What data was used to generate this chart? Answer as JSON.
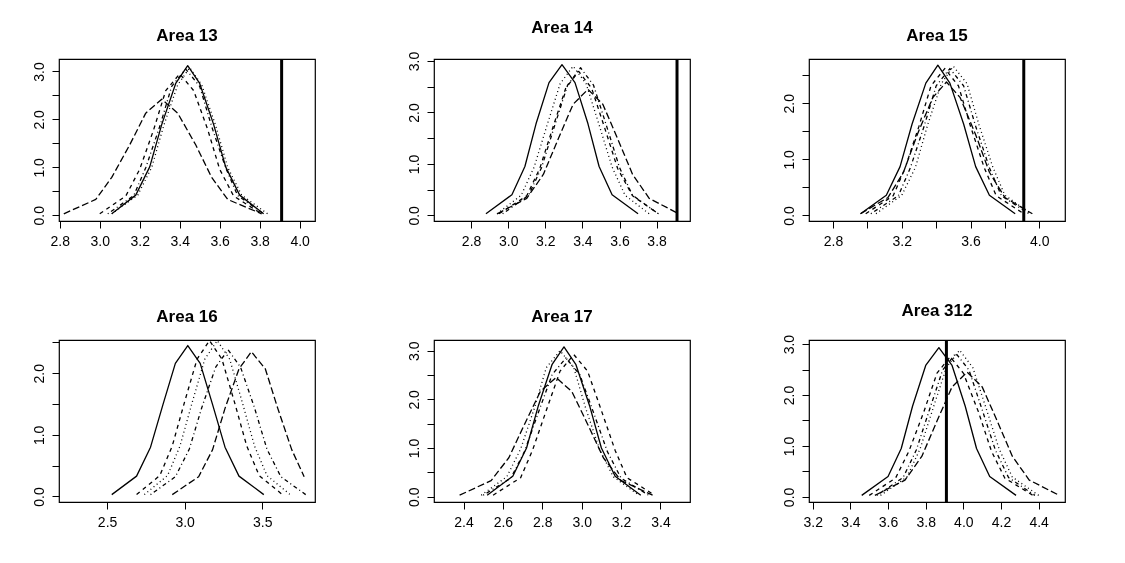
{
  "chart_data": [
    {
      "type": "line",
      "title": "Area 13",
      "xlim": [
        2.796,
        4.077
      ],
      "ylim": [
        -0.12,
        3.26
      ],
      "xticks": [
        2.8,
        {
          "value": 3,
          "label": "3.0"
        },
        3.2,
        3.4,
        3.6,
        3.8,
        {
          "value": 4,
          "label": "4.0"
        }
      ],
      "yticks": [
        {
          "value": 0,
          "label": "0.0"
        },
        {
          "value": 0.5,
          "label": null
        },
        {
          "value": 1,
          "label": "1.0"
        },
        {
          "value": 1.5,
          "label": null
        },
        {
          "value": 2,
          "label": "2.0"
        },
        {
          "value": 2.5,
          "label": null
        },
        {
          "value": 3,
          "label": "3.0"
        }
      ],
      "ref_lines": [
        {
          "axis": "x",
          "value": 3.91,
          "color": "#000000"
        }
      ],
      "series": [
        {
          "color": "#000000",
          "line_style": "solid",
          "x": [
            3.06,
            3.18,
            3.25,
            3.31,
            3.38,
            3.44,
            3.5,
            3.57,
            3.63,
            3.7,
            3.82
          ],
          "values": [
            0.03,
            0.42,
            1.01,
            1.89,
            2.75,
            3.12,
            2.75,
            1.89,
            1.01,
            0.42,
            0.03
          ]
        },
        {
          "color": "#000000",
          "line_style": "dashed",
          "x": [
            3.0,
            3.13,
            3.2,
            3.27,
            3.33,
            3.4,
            3.47,
            3.54,
            3.6,
            3.67,
            3.81
          ],
          "values": [
            0.03,
            0.4,
            0.96,
            1.79,
            2.6,
            2.95,
            2.6,
            1.79,
            0.96,
            0.4,
            0.03
          ]
        },
        {
          "color": "#000000",
          "line_style": "dotted",
          "x": [
            3.06,
            3.19,
            3.26,
            3.32,
            3.39,
            3.45,
            3.51,
            3.58,
            3.64,
            3.71,
            3.84
          ],
          "values": [
            0.03,
            0.42,
            1.0,
            1.87,
            2.72,
            3.08,
            2.72,
            1.87,
            1.0,
            0.42,
            0.03
          ]
        },
        {
          "color": "#000000",
          "line_style": "dotdash",
          "x": [
            3.04,
            3.17,
            3.23,
            3.3,
            3.36,
            3.43,
            3.5,
            3.56,
            3.63,
            3.69,
            3.82
          ],
          "values": [
            0.03,
            0.41,
            0.99,
            1.85,
            2.69,
            3.05,
            2.69,
            1.85,
            0.99,
            0.41,
            0.03
          ]
        },
        {
          "color": "#000000",
          "line_style": "longdash",
          "x": [
            2.82,
            2.98,
            3.06,
            3.15,
            3.23,
            3.31,
            3.39,
            3.48,
            3.56,
            3.64,
            3.81
          ],
          "values": [
            0.03,
            0.33,
            0.79,
            1.47,
            2.13,
            2.42,
            2.13,
            1.47,
            0.79,
            0.33,
            0.03
          ]
        }
      ]
    },
    {
      "type": "line",
      "title": "Area 14",
      "xlim": [
        2.6,
        3.98
      ],
      "ylim": [
        -0.11,
        3.04
      ],
      "xticks": [
        2.8,
        {
          "value": 3,
          "label": "3.0"
        },
        3.2,
        3.4,
        3.6,
        3.8
      ],
      "yticks": [
        {
          "value": 0,
          "label": "0.0"
        },
        {
          "value": 0.5,
          "label": null
        },
        {
          "value": 1,
          "label": "1.0"
        },
        {
          "value": 1.5,
          "label": null
        },
        {
          "value": 2,
          "label": "2.0"
        },
        {
          "value": 2.5,
          "label": null
        },
        {
          "value": 3,
          "label": "3.0"
        }
      ],
      "ref_lines": [
        {
          "axis": "x",
          "value": 3.91,
          "color": "#000000"
        }
      ],
      "series": [
        {
          "color": "#000000",
          "line_style": "solid",
          "x": [
            2.88,
            3.02,
            3.09,
            3.15,
            3.22,
            3.29,
            3.36,
            3.43,
            3.49,
            3.56,
            3.7
          ],
          "values": [
            0.03,
            0.4,
            0.95,
            1.78,
            2.58,
            2.93,
            2.58,
            1.78,
            0.95,
            0.4,
            0.03
          ]
        },
        {
          "color": "#000000",
          "line_style": "dashed",
          "x": [
            2.95,
            3.1,
            3.17,
            3.24,
            3.31,
            3.38,
            3.45,
            3.52,
            3.59,
            3.67,
            3.81
          ],
          "values": [
            0.03,
            0.38,
            0.91,
            1.7,
            2.47,
            2.8,
            2.47,
            1.7,
            0.91,
            0.38,
            0.03
          ]
        },
        {
          "color": "#000000",
          "line_style": "dotted",
          "x": [
            2.94,
            3.07,
            3.14,
            3.21,
            3.28,
            3.35,
            3.42,
            3.49,
            3.56,
            3.63,
            3.76
          ],
          "values": [
            0.03,
            0.39,
            0.94,
            1.76,
            2.56,
            2.9,
            2.56,
            1.76,
            0.94,
            0.39,
            0.03
          ]
        },
        {
          "color": "#000000",
          "line_style": "dotdash",
          "x": [
            2.97,
            3.11,
            3.18,
            3.25,
            3.32,
            3.39,
            3.46,
            3.53,
            3.6,
            3.67,
            3.81
          ],
          "values": [
            0.03,
            0.39,
            0.93,
            1.74,
            2.53,
            2.87,
            2.53,
            1.74,
            0.93,
            0.39,
            0.03
          ]
        },
        {
          "color": "#000000",
          "line_style": "longdash",
          "x": [
            2.94,
            3.1,
            3.19,
            3.27,
            3.35,
            3.43,
            3.51,
            3.59,
            3.67,
            3.76,
            3.92
          ],
          "values": [
            0.03,
            0.33,
            0.8,
            1.49,
            2.16,
            2.45,
            2.16,
            1.49,
            0.8,
            0.33,
            0.03
          ]
        }
      ]
    },
    {
      "type": "line",
      "title": "Area 15",
      "xlim": [
        2.66,
        4.15
      ],
      "ylim": [
        -0.1,
        2.79
      ],
      "xticks": [
        2.8,
        {
          "value": 3,
          "label": null
        },
        3.2,
        {
          "value": 3.4,
          "label": null
        },
        3.6,
        {
          "value": 3.8,
          "label": null
        },
        {
          "value": 4,
          "label": "4.0"
        }
      ],
      "yticks": [
        {
          "value": 0,
          "label": "0.0"
        },
        {
          "value": 0.5,
          "label": null
        },
        {
          "value": 1,
          "label": "1.0"
        },
        {
          "value": 1.5,
          "label": null
        },
        {
          "value": 2,
          "label": "2.0"
        },
        {
          "value": 2.5,
          "label": null
        }
      ],
      "ref_lines": [
        {
          "axis": "x",
          "value": 3.91,
          "color": "#000000"
        }
      ],
      "series": [
        {
          "color": "#000000",
          "line_style": "solid",
          "x": [
            2.96,
            3.11,
            3.19,
            3.26,
            3.34,
            3.41,
            3.48,
            3.56,
            3.63,
            3.71,
            3.86
          ],
          "values": [
            0.03,
            0.36,
            0.87,
            1.63,
            2.36,
            2.68,
            2.36,
            1.63,
            0.87,
            0.36,
            0.03
          ]
        },
        {
          "color": "#000000",
          "line_style": "dashed",
          "x": [
            2.99,
            3.15,
            3.22,
            3.3,
            3.37,
            3.45,
            3.53,
            3.6,
            3.68,
            3.75,
            3.91
          ],
          "values": [
            0.03,
            0.35,
            0.85,
            1.59,
            2.31,
            2.62,
            2.31,
            1.59,
            0.85,
            0.35,
            0.03
          ]
        },
        {
          "color": "#000000",
          "line_style": "dotted",
          "x": [
            3.05,
            3.2,
            3.28,
            3.35,
            3.43,
            3.5,
            3.58,
            3.65,
            3.73,
            3.8,
            3.95
          ],
          "values": [
            0.03,
            0.36,
            0.86,
            1.61,
            2.35,
            2.66,
            2.35,
            1.61,
            0.86,
            0.36,
            0.03
          ]
        },
        {
          "color": "#000000",
          "line_style": "dotdash",
          "x": [
            3.02,
            3.18,
            3.25,
            3.33,
            3.4,
            3.48,
            3.56,
            3.63,
            3.71,
            3.78,
            3.94
          ],
          "values": [
            0.03,
            0.35,
            0.85,
            1.59,
            2.31,
            2.62,
            2.31,
            1.59,
            0.85,
            0.35,
            0.03
          ]
        },
        {
          "color": "#000000",
          "line_style": "longdash",
          "x": [
            2.96,
            3.12,
            3.21,
            3.29,
            3.38,
            3.46,
            3.54,
            3.63,
            3.71,
            3.8,
            3.96
          ],
          "values": [
            0.03,
            0.32,
            0.77,
            1.44,
            2.1,
            2.38,
            2.1,
            1.44,
            0.77,
            0.32,
            0.03
          ]
        }
      ]
    },
    {
      "type": "line",
      "title": "Area 16",
      "xlim": [
        2.19,
        3.84
      ],
      "ylim": [
        -0.09,
        2.54
      ],
      "xticks": [
        2.5,
        {
          "value": 3,
          "label": "3.0"
        },
        3.5
      ],
      "yticks": [
        {
          "value": 0,
          "label": "0.0"
        },
        {
          "value": 0.5,
          "label": null
        },
        {
          "value": 1,
          "label": "1.0"
        },
        {
          "value": 1.5,
          "label": null
        },
        {
          "value": 2,
          "label": "2.0"
        },
        {
          "value": 2.5,
          "label": null
        }
      ],
      "series": [
        {
          "color": "#000000",
          "line_style": "solid",
          "x": [
            2.53,
            2.69,
            2.78,
            2.86,
            2.94,
            3.02,
            3.1,
            3.18,
            3.26,
            3.35,
            3.51
          ],
          "values": [
            0.03,
            0.33,
            0.8,
            1.49,
            2.16,
            2.45,
            2.16,
            1.49,
            0.8,
            0.33,
            0.03
          ]
        },
        {
          "color": "#000000",
          "line_style": "dashed",
          "x": [
            2.69,
            2.84,
            2.92,
            3.0,
            3.08,
            3.16,
            3.24,
            3.32,
            3.4,
            3.48,
            3.63
          ],
          "values": [
            0.03,
            0.34,
            0.82,
            1.54,
            2.23,
            2.53,
            2.23,
            1.54,
            0.82,
            0.34,
            0.03
          ]
        },
        {
          "color": "#000000",
          "line_style": "dotted",
          "x": [
            2.74,
            2.89,
            2.97,
            3.05,
            3.13,
            3.21,
            3.29,
            3.37,
            3.45,
            3.53,
            3.68
          ],
          "values": [
            0.03,
            0.34,
            0.82,
            1.54,
            2.23,
            2.53,
            2.23,
            1.54,
            0.82,
            0.34,
            0.03
          ]
        },
        {
          "color": "#000000",
          "line_style": "dotdash",
          "x": [
            2.78,
            2.94,
            3.03,
            3.11,
            3.2,
            3.28,
            3.36,
            3.45,
            3.53,
            3.62,
            3.78
          ],
          "values": [
            0.03,
            0.32,
            0.77,
            1.44,
            2.1,
            2.38,
            2.1,
            1.44,
            0.77,
            0.32,
            0.03
          ]
        },
        {
          "color": "#000000",
          "line_style": "longdash",
          "x": [
            2.92,
            3.09,
            3.18,
            3.26,
            3.35,
            3.43,
            3.52,
            3.6,
            3.69,
            3.77
          ],
          "values": [
            0.03,
            0.32,
            0.76,
            1.43,
            2.07,
            2.35,
            2.07,
            1.43,
            0.76,
            0.32
          ]
        }
      ]
    },
    {
      "type": "line",
      "title": "Area 17",
      "xlim": [
        2.25,
        3.55
      ],
      "ylim": [
        -0.11,
        3.22
      ],
      "xticks": [
        2.4,
        2.6,
        2.8,
        {
          "value": 3,
          "label": "3.0"
        },
        3.2,
        3.4
      ],
      "yticks": [
        {
          "value": 0,
          "label": "0.0"
        },
        {
          "value": 0.5,
          "label": null
        },
        {
          "value": 1,
          "label": "1.0"
        },
        {
          "value": 1.5,
          "label": null
        },
        {
          "value": 2,
          "label": "2.0"
        },
        {
          "value": 2.5,
          "label": null
        },
        {
          "value": 3,
          "label": "3.0"
        }
      ],
      "series": [
        {
          "color": "#000000",
          "line_style": "solid",
          "x": [
            2.52,
            2.65,
            2.72,
            2.78,
            2.85,
            2.91,
            2.97,
            3.04,
            3.1,
            3.17,
            3.3
          ],
          "values": [
            0.03,
            0.42,
            1.0,
            1.87,
            2.72,
            3.08,
            2.72,
            1.87,
            1.0,
            0.42,
            0.03
          ]
        },
        {
          "color": "#000000",
          "line_style": "dashed",
          "x": [
            2.55,
            2.69,
            2.75,
            2.82,
            2.89,
            2.96,
            3.03,
            3.1,
            3.17,
            3.23,
            3.37
          ],
          "values": [
            0.03,
            0.39,
            0.95,
            1.77,
            2.58,
            2.92,
            2.58,
            1.77,
            0.95,
            0.39,
            0.03
          ]
        },
        {
          "color": "#000000",
          "line_style": "dotted",
          "x": [
            2.49,
            2.62,
            2.69,
            2.76,
            2.82,
            2.89,
            2.96,
            3.02,
            3.09,
            3.16,
            3.29
          ],
          "values": [
            0.03,
            0.41,
            0.98,
            1.82,
            2.65,
            3.0,
            2.65,
            1.82,
            0.98,
            0.41,
            0.03
          ]
        },
        {
          "color": "#000000",
          "line_style": "dotdash",
          "x": [
            2.5,
            2.64,
            2.71,
            2.78,
            2.85,
            2.92,
            2.99,
            3.06,
            3.13,
            3.2,
            3.34
          ],
          "values": [
            0.03,
            0.38,
            0.93,
            1.73,
            2.51,
            2.85,
            2.51,
            1.73,
            0.93,
            0.38,
            0.03
          ]
        },
        {
          "color": "#000000",
          "line_style": "longdash",
          "x": [
            2.38,
            2.54,
            2.63,
            2.71,
            2.79,
            2.87,
            2.95,
            3.03,
            3.11,
            3.2,
            3.36
          ],
          "values": [
            0.03,
            0.33,
            0.8,
            1.49,
            2.16,
            2.45,
            2.16,
            1.49,
            0.8,
            0.33,
            0.03
          ]
        }
      ]
    },
    {
      "type": "line",
      "title": "Area 312",
      "xlim": [
        3.18,
        4.54
      ],
      "ylim": [
        -0.1,
        3.08
      ],
      "xticks": [
        3.2,
        3.4,
        3.6,
        3.8,
        {
          "value": 4,
          "label": "4.0"
        },
        4.2,
        4.4
      ],
      "yticks": [
        {
          "value": 0,
          "label": "0.0"
        },
        {
          "value": 0.5,
          "label": null
        },
        {
          "value": 1,
          "label": "1.0"
        },
        {
          "value": 1.5,
          "label": null
        },
        {
          "value": 2,
          "label": "2.0"
        },
        {
          "value": 2.5,
          "label": null
        },
        {
          "value": 3,
          "label": "3.0"
        }
      ],
      "ref_lines": [
        {
          "axis": "x",
          "value": 3.91,
          "color": "#000000"
        }
      ],
      "series": [
        {
          "color": "#000000",
          "line_style": "solid",
          "x": [
            3.46,
            3.6,
            3.67,
            3.73,
            3.8,
            3.87,
            3.94,
            4.01,
            4.07,
            4.14,
            4.28
          ],
          "values": [
            0.03,
            0.4,
            0.95,
            1.78,
            2.58,
            2.93,
            2.58,
            1.78,
            0.95,
            0.4,
            0.03
          ]
        },
        {
          "color": "#000000",
          "line_style": "dashed",
          "x": [
            3.5,
            3.64,
            3.71,
            3.79,
            3.86,
            3.93,
            4.0,
            4.08,
            4.15,
            4.22,
            4.37
          ],
          "values": [
            0.03,
            0.37,
            0.89,
            1.67,
            2.43,
            2.75,
            2.43,
            1.67,
            0.89,
            0.37,
            0.03
          ]
        },
        {
          "color": "#000000",
          "line_style": "dotted",
          "x": [
            3.56,
            3.7,
            3.77,
            3.84,
            3.91,
            3.98,
            4.05,
            4.12,
            4.19,
            4.26,
            4.4
          ],
          "values": [
            0.03,
            0.39,
            0.94,
            1.75,
            2.54,
            2.88,
            2.54,
            1.75,
            0.94,
            0.39,
            0.03
          ]
        },
        {
          "color": "#000000",
          "line_style": "dotdash",
          "x": [
            3.54,
            3.68,
            3.75,
            3.82,
            3.89,
            3.96,
            4.03,
            4.1,
            4.17,
            4.24,
            4.38
          ],
          "values": [
            0.03,
            0.38,
            0.92,
            1.71,
            2.49,
            2.82,
            2.49,
            1.71,
            0.92,
            0.38,
            0.03
          ]
        },
        {
          "color": "#000000",
          "line_style": "longdash",
          "x": [
            3.53,
            3.69,
            3.78,
            3.86,
            3.94,
            4.02,
            4.1,
            4.18,
            4.26,
            4.35,
            4.51
          ],
          "values": [
            0.03,
            0.33,
            0.8,
            1.49,
            2.16,
            2.45,
            2.16,
            1.49,
            0.8,
            0.33,
            0.03
          ]
        }
      ]
    }
  ]
}
